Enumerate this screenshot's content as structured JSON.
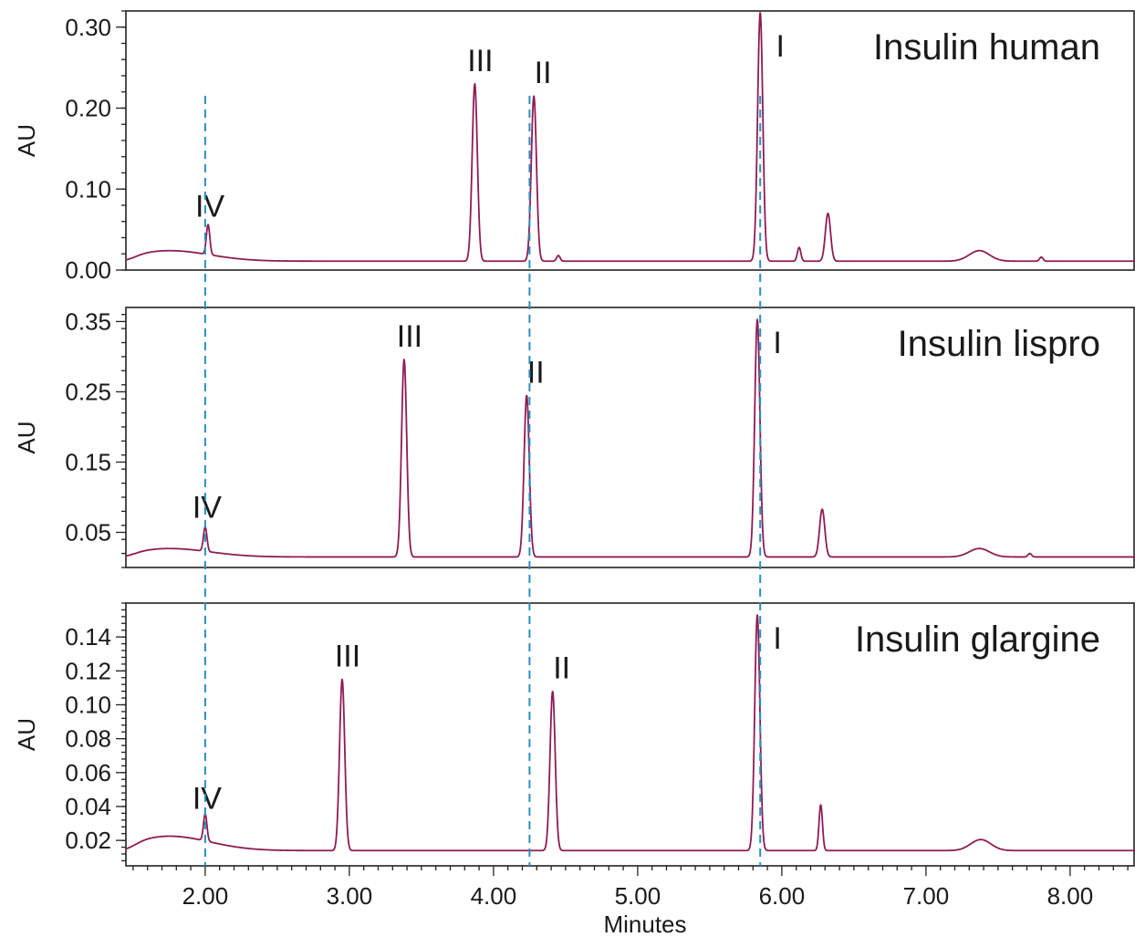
{
  "chart_data": {
    "type": "line",
    "x_axis": {
      "label": "Minutes",
      "range": [
        1.45,
        8.45
      ],
      "ticks": [
        2.0,
        3.0,
        4.0,
        5.0,
        6.0,
        7.0,
        8.0
      ],
      "tick_labels": [
        "2.00",
        "3.00",
        "4.00",
        "5.00",
        "6.00",
        "7.00",
        "8.00"
      ]
    },
    "reference_lines_x": [
      2.0,
      4.25,
      5.85
    ],
    "colors": {
      "trace": "#8e1c55",
      "reference": "#2a8fc1",
      "frame": "#222222"
    },
    "grid": false,
    "panels": [
      {
        "title": "Insulin human",
        "ylabel": "AU",
        "ylim": [
          0.0,
          0.32
        ],
        "y_ticks": [
          0.0,
          0.1,
          0.2,
          0.3
        ],
        "y_tick_labels": [
          "0.00",
          "0.10",
          "0.20",
          "0.30"
        ],
        "baseline": 0.011,
        "baseline_hump": {
          "x": 1.75,
          "height": 0.013,
          "width": 0.28
        },
        "broad_humps": [
          {
            "x": 7.37,
            "height": 0.013,
            "width": 0.07
          }
        ],
        "peaks": [
          {
            "label": "IV",
            "x": 2.02,
            "y": 0.048
          },
          {
            "label": "III",
            "x": 3.87,
            "y": 0.23
          },
          {
            "label": "II",
            "x": 4.28,
            "y": 0.215
          },
          {
            "label": "",
            "x": 4.45,
            "y": 0.018
          },
          {
            "label": "I",
            "x": 5.85,
            "y": 0.318
          },
          {
            "label": "",
            "x": 6.12,
            "y": 0.028
          },
          {
            "label": "",
            "x": 6.32,
            "y": 0.07
          },
          {
            "label": "",
            "x": 7.8,
            "y": 0.016
          }
        ]
      },
      {
        "title": "Insulin lispro",
        "ylabel": "AU",
        "ylim": [
          0.0,
          0.37
        ],
        "y_ticks": [
          0.05,
          0.15,
          0.25,
          0.35
        ],
        "y_tick_labels": [
          "0.05",
          "0.15",
          "0.25",
          "0.35"
        ],
        "baseline": 0.015,
        "baseline_hump": {
          "x": 1.75,
          "height": 0.012,
          "width": 0.28
        },
        "broad_humps": [
          {
            "x": 7.37,
            "height": 0.012,
            "width": 0.07
          }
        ],
        "peaks": [
          {
            "label": "IV",
            "x": 2.0,
            "y": 0.05
          },
          {
            "label": "III",
            "x": 3.38,
            "y": 0.296
          },
          {
            "label": "II",
            "x": 4.23,
            "y": 0.245
          },
          {
            "label": "I",
            "x": 5.83,
            "y": 0.353
          },
          {
            "label": "",
            "x": 6.28,
            "y": 0.083
          },
          {
            "label": "",
            "x": 7.72,
            "y": 0.02
          }
        ]
      },
      {
        "title": "Insulin glargine",
        "ylabel": "AU",
        "ylim": [
          0.005,
          0.16
        ],
        "y_ticks": [
          0.02,
          0.04,
          0.06,
          0.08,
          0.1,
          0.12,
          0.14
        ],
        "y_tick_labels": [
          "0.02",
          "0.04",
          "0.06",
          "0.08",
          "0.10",
          "0.12",
          "0.14"
        ],
        "baseline": 0.014,
        "baseline_hump": {
          "x": 1.75,
          "height": 0.0085,
          "width": 0.28
        },
        "broad_humps": [
          {
            "x": 7.38,
            "height": 0.0065,
            "width": 0.07
          }
        ],
        "peaks": [
          {
            "label": "IV",
            "x": 2.0,
            "y": 0.03
          },
          {
            "label": "III",
            "x": 2.95,
            "y": 0.115
          },
          {
            "label": "II",
            "x": 4.41,
            "y": 0.108
          },
          {
            "label": "I",
            "x": 5.83,
            "y": 0.153
          },
          {
            "label": "",
            "x": 6.27,
            "y": 0.041
          }
        ]
      }
    ]
  }
}
